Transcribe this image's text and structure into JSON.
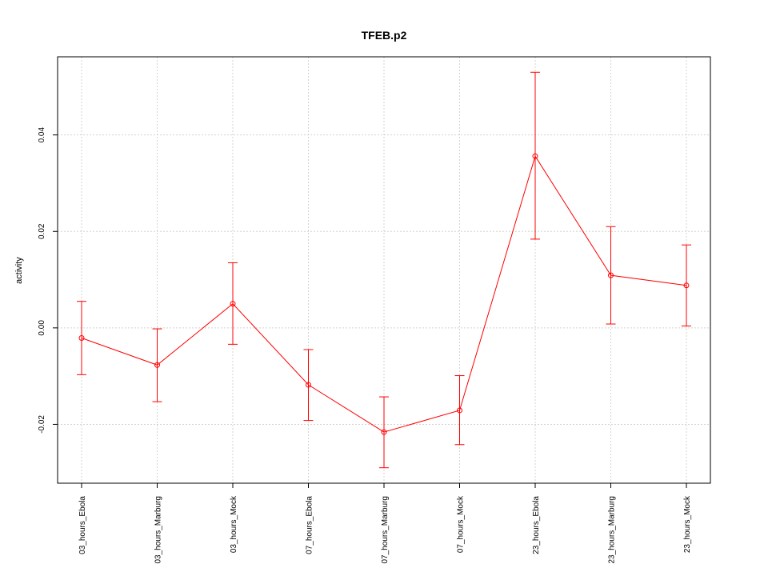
{
  "chart_data": {
    "type": "line",
    "title": "TFEB.p2",
    "xlabel": "",
    "ylabel": "activity",
    "categories": [
      "03_hours_Ebola",
      "03_hours_Marburg",
      "03_hours_Mock",
      "07_hours_Ebola",
      "07_hours_Marburg",
      "07_hours_Mock",
      "23_hours_Ebola",
      "23_hours_Marburg",
      "23_hours_Mock"
    ],
    "series": [
      {
        "values": [
          -0.0021,
          -0.0077,
          0.005,
          -0.0118,
          -0.0216,
          -0.0171,
          0.0356,
          0.0109,
          0.0088
        ],
        "err_low": [
          -0.0097,
          -0.0153,
          -0.0034,
          -0.0192,
          -0.029,
          -0.0242,
          0.0184,
          0.0008,
          0.0004
        ],
        "err_high": [
          0.0055,
          -0.0002,
          0.0135,
          -0.0045,
          -0.0143,
          -0.0099,
          0.053,
          0.021,
          0.0172
        ],
        "color": "#ff0000"
      }
    ],
    "yticks": [
      -0.02,
      0.0,
      0.02,
      0.04
    ],
    "ytick_labels": [
      "-0.02",
      "0.00",
      "0.02",
      "0.04"
    ],
    "ylim": [
      -0.0322,
      0.0562
    ],
    "grid": true,
    "colors": {
      "line": "#ff0000",
      "grid": "#d3d3d3",
      "frame": "#000000"
    }
  }
}
